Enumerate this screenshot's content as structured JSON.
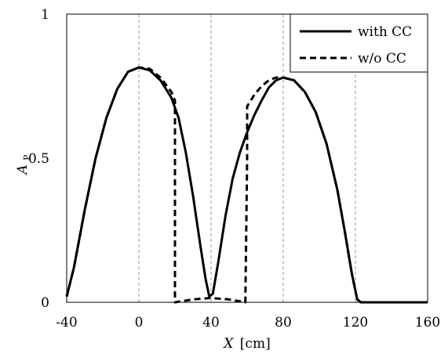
{
  "chart_data": {
    "type": "line",
    "xlabel": "X",
    "xlabel_unit": "[cm]",
    "ylabel": "A",
    "ylabel_subscript": "P",
    "xlim": [
      -40,
      160
    ],
    "ylim": [
      0,
      1
    ],
    "x_ticks": [
      "-40",
      "0",
      "40",
      "80",
      "120",
      "160"
    ],
    "y_ticks": [
      "0",
      "0.5",
      "1"
    ],
    "grid": "vertical dashed at x ticks",
    "legend_position": "top-right",
    "series": [
      {
        "name": "with CC",
        "style": "solid",
        "color": "#000000",
        "points": [
          [
            -40,
            0.02
          ],
          [
            -36,
            0.12
          ],
          [
            -30,
            0.32
          ],
          [
            -24,
            0.5
          ],
          [
            -18,
            0.64
          ],
          [
            -12,
            0.74
          ],
          [
            -6,
            0.8
          ],
          [
            0,
            0.815
          ],
          [
            6,
            0.805
          ],
          [
            12,
            0.77
          ],
          [
            18,
            0.71
          ],
          [
            22,
            0.64
          ],
          [
            26,
            0.52
          ],
          [
            30,
            0.37
          ],
          [
            34,
            0.2
          ],
          [
            37,
            0.08
          ],
          [
            39,
            0.02
          ],
          [
            41,
            0.03
          ],
          [
            44,
            0.14
          ],
          [
            48,
            0.3
          ],
          [
            52,
            0.43
          ],
          [
            56,
            0.52
          ],
          [
            60,
            0.59
          ],
          [
            64,
            0.65
          ],
          [
            68,
            0.7
          ],
          [
            72,
            0.745
          ],
          [
            76,
            0.77
          ],
          [
            80,
            0.78
          ],
          [
            86,
            0.77
          ],
          [
            92,
            0.73
          ],
          [
            98,
            0.66
          ],
          [
            104,
            0.55
          ],
          [
            110,
            0.39
          ],
          [
            114,
            0.25
          ],
          [
            118,
            0.1
          ],
          [
            121,
            0.01
          ],
          [
            123,
            0.0
          ],
          [
            160,
            0.0
          ]
        ]
      },
      {
        "name": "w/o CC",
        "style": "dashed",
        "color": "#000000",
        "points": [
          [
            -40,
            0.02
          ],
          [
            -36,
            0.12
          ],
          [
            -30,
            0.32
          ],
          [
            -24,
            0.5
          ],
          [
            -18,
            0.64
          ],
          [
            -12,
            0.74
          ],
          [
            -6,
            0.8
          ],
          [
            0,
            0.815
          ],
          [
            6,
            0.81
          ],
          [
            12,
            0.78
          ],
          [
            18,
            0.73
          ],
          [
            20,
            0.7
          ],
          [
            20,
            0.0
          ],
          [
            30,
            0.01
          ],
          [
            40,
            0.015
          ],
          [
            50,
            0.01
          ],
          [
            59,
            0.0
          ],
          [
            60,
            0.5
          ],
          [
            60,
            0.68
          ],
          [
            64,
            0.72
          ],
          [
            68,
            0.75
          ],
          [
            72,
            0.77
          ],
          [
            76,
            0.78
          ],
          [
            80,
            0.78
          ],
          [
            86,
            0.77
          ],
          [
            92,
            0.73
          ],
          [
            98,
            0.66
          ],
          [
            104,
            0.55
          ],
          [
            110,
            0.39
          ],
          [
            114,
            0.25
          ],
          [
            118,
            0.1
          ],
          [
            121,
            0.01
          ],
          [
            123,
            0.0
          ],
          [
            160,
            0.0
          ]
        ]
      }
    ]
  }
}
